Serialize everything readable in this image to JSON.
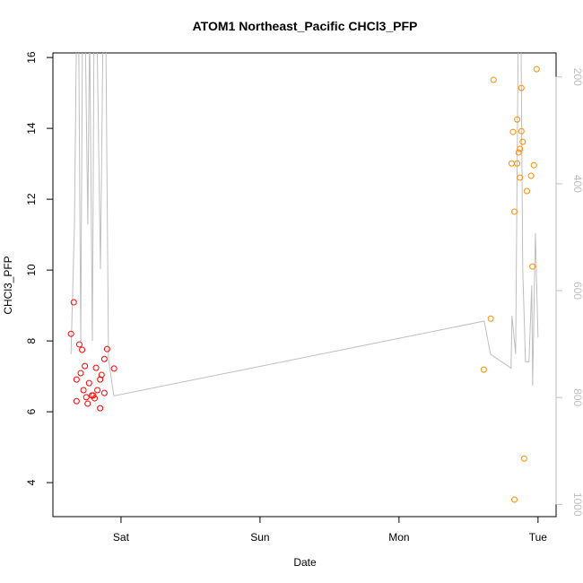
{
  "chart_data": {
    "type": "scatter",
    "title": "ATOM1 Northeast_Pacific CHCl3_PFP",
    "xlabel": "Date",
    "ylabel": "CHCl3_PFP",
    "xlim": [
      -0.49,
      3.13
    ],
    "xticks": [
      {
        "value": 0,
        "label": "Sat"
      },
      {
        "value": 1,
        "label": "Sun"
      },
      {
        "value": 2,
        "label": "Mon"
      },
      {
        "value": 3,
        "label": "Tue"
      }
    ],
    "ylim": [
      3.04,
      16.13
    ],
    "yticks": [
      4,
      6,
      8,
      10,
      12,
      14,
      16
    ],
    "y2lim": [
      1023,
      155
    ],
    "y2ticks": [
      200,
      400,
      600,
      800,
      1000
    ],
    "series": [
      {
        "color": "#ff0000",
        "x": [
          -0.36,
          -0.34,
          -0.32,
          -0.32,
          -0.3,
          -0.29,
          -0.28,
          -0.27,
          -0.26,
          -0.25,
          -0.24,
          -0.23,
          -0.21,
          -0.2,
          -0.19,
          -0.18,
          -0.17,
          -0.15,
          -0.15,
          -0.14,
          -0.12,
          -0.12,
          -0.1,
          -0.05
        ],
        "values": [
          8.2,
          9.09,
          6.3,
          6.91,
          7.9,
          7.09,
          7.75,
          6.61,
          7.29,
          6.41,
          6.23,
          6.81,
          6.46,
          6.46,
          6.38,
          7.24,
          6.61,
          6.1,
          6.91,
          7.04,
          7.49,
          6.53,
          7.77,
          7.22
        ]
      },
      {
        "color": "#ff8c00",
        "x": [
          2.61,
          2.66,
          2.68,
          2.81,
          2.82,
          2.83,
          2.83,
          2.85,
          2.85,
          2.86,
          2.87,
          2.87,
          2.88,
          2.88,
          2.89,
          2.9,
          2.92,
          2.95,
          2.96,
          2.97,
          2.99
        ],
        "values": [
          7.19,
          8.63,
          15.37,
          13.01,
          13.9,
          11.65,
          3.52,
          13.01,
          14.25,
          13.32,
          12.61,
          13.42,
          15.14,
          13.92,
          13.62,
          4.68,
          12.23,
          12.66,
          10.1,
          12.96,
          15.67
        ]
      },
      {
        "type": "line",
        "axis": "y2",
        "color": "#bebebe",
        "x": [
          -0.36,
          -0.335,
          -0.32,
          -0.305,
          -0.29,
          -0.277,
          -0.258,
          -0.239,
          -0.226,
          -0.206,
          -0.194,
          -0.174,
          -0.148,
          -0.129,
          -0.11,
          -0.09,
          -0.052,
          2.613,
          2.658,
          2.806,
          2.813,
          2.839,
          2.858,
          2.877,
          2.89,
          2.91,
          2.935,
          2.955,
          2.961,
          2.981,
          3.0
        ],
        "values": [
          719,
          476,
          100,
          100,
          694,
          100,
          100,
          476,
          100,
          694,
          100,
          100,
          560,
          100,
          100,
          728,
          797,
          657,
          719,
          745,
          647,
          719,
          100,
          100,
          560,
          733,
          733,
          590,
          778,
          492,
          688
        ]
      }
    ]
  }
}
